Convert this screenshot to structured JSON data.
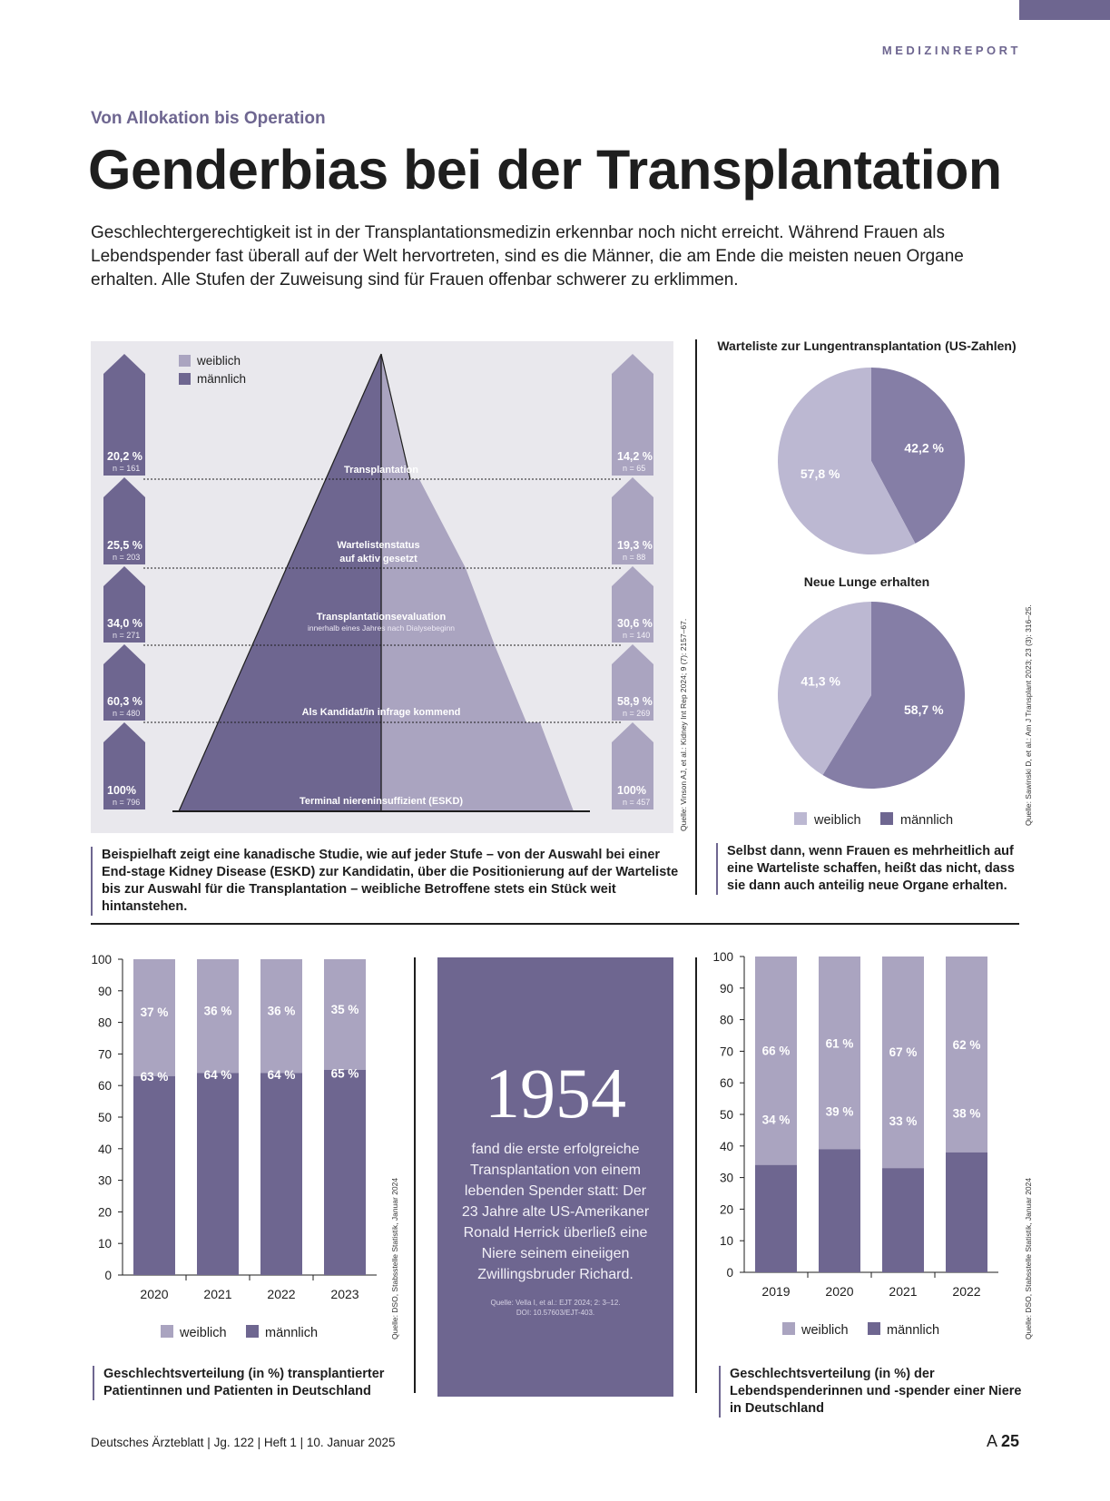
{
  "header": {
    "section": "MEDIZINREPORT"
  },
  "article": {
    "kicker": "Von Allokation bis Operation",
    "title": "Genderbias bei der Transplantation",
    "lead": "Geschlechtergerechtigkeit ist in der Transplantationsmedizin erkennbar noch nicht erreicht. Während Frauen als Lebendspender fast überall auf der Welt hervortreten, sind es die Männer, die am Ende die meisten neuen Organe erhalten. Alle Stufen der Zuweisung sind für Frauen offenbar schwerer zu erklimmen."
  },
  "colors": {
    "female": "#aaa4c0",
    "male": "#6e6690",
    "female_pie": "#bcb8d2",
    "male_pie": "#857ea6"
  },
  "legend": {
    "female": "weiblich",
    "male": "männlich"
  },
  "captions": {
    "pyramid": "Beispielhaft zeigt eine kanadische Studie, wie auf jeder Stufe – von der Auswahl bei einer End-stage Kidney Disease (ESKD) zur Kandidatin, über die Positionierung auf der Warteliste bis zur Auswahl für die Transplantation – weibliche Betroffene stets ein Stück weit hintanstehen.",
    "pies": "Selbst dann, wenn Frauen es mehrheitlich auf eine Warteliste schaffen, heißt das nicht, dass sie dann auch anteilig neue Organe erhalten.",
    "bars1": "Geschlechtsverteilung (in %) transplantierter Patientinnen und Patienten in Deutschland",
    "bars2": "Geschlechtsverteilung (in %) der Lebendspende­rinnen und -spender einer Niere in Deutschland"
  },
  "sources": {
    "pyramid": "Quelle: Vinson AJ, et al.: Kidney Int Rep 2024; 9 (7): 2157–67.",
    "pies": "Quelle: Sawinski D, et al.: Am J Transplant 2023; 23 (3): 316–25.",
    "bars1": "Quelle: DSO, Stabsstelle Statistik, Januar 2024",
    "bars2": "Quelle: DSO, Stabsstelle Statistik, Januar 2024"
  },
  "info_box": {
    "year": "1954",
    "text": "fand die erste erfolgreiche Transplantation von einem lebenden Spender statt: Der 23 Jahre alte US-Amerikaner Ronald Herrick überließ eine Niere seinem eineiigen Zwillingsbruder Richard.",
    "source_line1": "Quelle: Vella I, et al.: EJT 2024; 2: 3–12.",
    "source_line2": "DOI: 10.57603/EJT-403."
  },
  "footer": {
    "journal": "Deutsches Ärzteblatt | Jg. 122 | Heft 1 | 10. Januar 2025",
    "page_prefix": "A ",
    "page": "25"
  },
  "chart_data": [
    {
      "type": "pyramid",
      "levels": [
        {
          "label": "Transplantation",
          "sublabel": "",
          "male_pct": "20,2 %",
          "male_n": "n = 161",
          "female_pct": "14,2 %",
          "female_n": "n = 65",
          "male_value": 20.2,
          "female_value": 14.2
        },
        {
          "label": "Wartelistenstatus auf aktiv gesetzt",
          "sublabel": "",
          "male_pct": "25,5 %",
          "male_n": "n = 203",
          "female_pct": "19,3 %",
          "female_n": "n = 88",
          "male_value": 25.5,
          "female_value": 19.3
        },
        {
          "label": "Transplantationsevaluation",
          "sublabel": "innerhalb eines Jahres nach Dialysebeginn",
          "male_pct": "34,0 %",
          "male_n": "n = 271",
          "female_pct": "30,6 %",
          "female_n": "n = 140",
          "male_value": 34.0,
          "female_value": 30.6
        },
        {
          "label": "Als Kandidat/in infrage kommend",
          "sublabel": "",
          "male_pct": "60,3 %",
          "male_n": "n = 480",
          "female_pct": "58,9 %",
          "female_n": "n = 269",
          "male_value": 60.3,
          "female_value": 58.9
        },
        {
          "label": "Terminal niereninsuffizient (ESKD)",
          "sublabel": "",
          "male_pct": "100%",
          "male_n": "n = 796",
          "female_pct": "100%",
          "female_n": "n = 457",
          "male_value": 100,
          "female_value": 100
        }
      ]
    },
    {
      "type": "pie",
      "title": "Warteliste zur Lungentransplantation (US-Zahlen)",
      "slices": [
        {
          "name": "weiblich",
          "value": 57.8,
          "label": "57,8 %"
        },
        {
          "name": "männlich",
          "value": 42.2,
          "label": "42,2 %"
        }
      ]
    },
    {
      "type": "pie",
      "title": "Neue Lunge erhalten",
      "slices": [
        {
          "name": "weiblich",
          "value": 41.3,
          "label": "41,3 %"
        },
        {
          "name": "männlich",
          "value": 58.7,
          "label": "58,7 %"
        }
      ]
    },
    {
      "type": "bar",
      "stacked": true,
      "categories": [
        "2020",
        "2021",
        "2022",
        "2023"
      ],
      "ylim": [
        0,
        100
      ],
      "yticks": [
        "0",
        "10",
        "20",
        "30",
        "40",
        "50",
        "60",
        "70",
        "80",
        "90",
        "100"
      ],
      "series": [
        {
          "name": "männlich",
          "values": [
            63,
            64,
            64,
            65
          ],
          "labels": [
            "63 %",
            "64 %",
            "64 %",
            "65 %"
          ]
        },
        {
          "name": "weiblich",
          "values": [
            37,
            36,
            36,
            35
          ],
          "labels": [
            "37 %",
            "36 %",
            "36 %",
            "35 %"
          ]
        }
      ]
    },
    {
      "type": "bar",
      "stacked": true,
      "categories": [
        "2019",
        "2020",
        "2021",
        "2022"
      ],
      "ylim": [
        0,
        100
      ],
      "yticks": [
        "0",
        "10",
        "20",
        "30",
        "40",
        "50",
        "60",
        "70",
        "80",
        "90",
        "100"
      ],
      "series": [
        {
          "name": "männlich",
          "values": [
            34,
            39,
            33,
            38
          ],
          "labels": [
            "34 %",
            "39 %",
            "33 %",
            "38 %"
          ]
        },
        {
          "name": "weiblich",
          "values": [
            66,
            61,
            67,
            62
          ],
          "labels": [
            "66 %",
            "61 %",
            "67 %",
            "62 %"
          ]
        }
      ]
    }
  ]
}
